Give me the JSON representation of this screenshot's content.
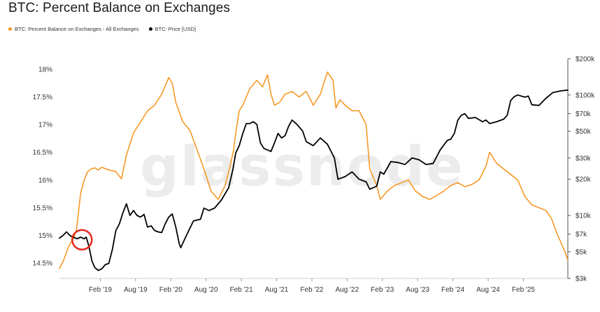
{
  "chart_data": {
    "type": "line",
    "title": "BTC: Percent Balance on Exchanges",
    "watermark": "glassnode",
    "x_labels": [
      "Feb '19",
      "Aug '19",
      "Feb '20",
      "Aug '20",
      "Feb '21",
      "Aug '21",
      "Feb '22",
      "Aug '22",
      "Feb '23",
      "Aug '23",
      "Feb '24",
      "Aug '24",
      "Feb '25"
    ],
    "x_label_values": [
      2019.08,
      2019.58,
      2020.08,
      2020.58,
      2021.08,
      2021.58,
      2022.08,
      2022.58,
      2023.08,
      2023.58,
      2024.08,
      2024.58,
      2025.08
    ],
    "xlim": [
      2018.5,
      2025.71
    ],
    "y_left": {
      "ticks": [
        "18%",
        "17.5%",
        "17%",
        "16.5%",
        "16%",
        "15.5%",
        "15%",
        "14.5%"
      ],
      "tick_values": [
        18,
        17.5,
        17,
        16.5,
        16,
        15.5,
        15,
        14.5
      ],
      "ylim": [
        14.3,
        18.1
      ]
    },
    "y_right": {
      "scale": "log",
      "ticks": [
        "$200k",
        "$100k",
        "$70k",
        "$50k",
        "$30k",
        "$20k",
        "$10k",
        "$7k",
        "$5k",
        "$3k"
      ],
      "tick_values": [
        200000,
        100000,
        70000,
        50000,
        30000,
        20000,
        10000,
        7000,
        5000,
        3000
      ],
      "ylim": [
        3000,
        200000
      ]
    },
    "series": [
      {
        "name": "BTC: Percent Balance on Exchanges - All Exchanges",
        "color": "#f7931a",
        "axis": "left",
        "x": [
          2018.5,
          2018.56,
          2018.63,
          2018.7,
          2018.74,
          2018.76,
          2018.8,
          2018.85,
          2018.9,
          2018.95,
          2019.0,
          2019.05,
          2019.1,
          2019.2,
          2019.3,
          2019.38,
          2019.45,
          2019.55,
          2019.65,
          2019.75,
          2019.85,
          2019.95,
          2020.05,
          2020.1,
          2020.15,
          2020.25,
          2020.35,
          2020.45,
          2020.55,
          2020.65,
          2020.75,
          2020.85,
          2020.92,
          2020.97,
          2021.0,
          2021.05,
          2021.1,
          2021.2,
          2021.3,
          2021.38,
          2021.45,
          2021.5,
          2021.55,
          2021.62,
          2021.7,
          2021.8,
          2021.9,
          2022.0,
          2022.1,
          2022.2,
          2022.3,
          2022.38,
          2022.42,
          2022.48,
          2022.55,
          2022.65,
          2022.75,
          2022.85,
          2022.9,
          2022.95,
          2023.0,
          2023.05,
          2023.15,
          2023.25,
          2023.35,
          2023.45,
          2023.55,
          2023.65,
          2023.75,
          2023.85,
          2023.95,
          2024.05,
          2024.15,
          2024.25,
          2024.35,
          2024.45,
          2024.55,
          2024.6,
          2024.65,
          2024.7,
          2024.8,
          2024.9,
          2025.0,
          2025.1,
          2025.2,
          2025.3,
          2025.4,
          2025.48,
          2025.55,
          2025.62,
          2025.67,
          2025.71
        ],
        "y": [
          14.4,
          14.55,
          14.8,
          14.95,
          15.1,
          15.3,
          15.75,
          16.0,
          16.15,
          16.2,
          16.22,
          16.18,
          16.23,
          16.18,
          16.15,
          16.02,
          16.45,
          16.85,
          17.05,
          17.25,
          17.35,
          17.55,
          17.85,
          17.75,
          17.4,
          17.05,
          16.9,
          16.55,
          16.2,
          15.8,
          15.65,
          15.9,
          16.25,
          16.55,
          16.85,
          17.25,
          17.35,
          17.65,
          17.8,
          17.68,
          17.9,
          17.55,
          17.35,
          17.4,
          17.55,
          17.6,
          17.5,
          17.6,
          17.35,
          17.55,
          17.95,
          17.8,
          17.3,
          17.45,
          17.35,
          17.25,
          17.25,
          17.0,
          16.2,
          16.05,
          15.9,
          15.65,
          15.8,
          15.9,
          15.95,
          16.0,
          15.8,
          15.7,
          15.65,
          15.72,
          15.8,
          15.9,
          15.95,
          15.88,
          15.92,
          16.0,
          16.25,
          16.5,
          16.4,
          16.3,
          16.2,
          16.1,
          16.0,
          15.7,
          15.55,
          15.5,
          15.45,
          15.3,
          15.05,
          14.85,
          14.7,
          14.55
        ]
      },
      {
        "name": "BTC: Price [USD]",
        "color": "#000000",
        "axis": "right",
        "x": [
          2018.5,
          2018.55,
          2018.6,
          2018.65,
          2018.7,
          2018.75,
          2018.8,
          2018.85,
          2018.88,
          2018.92,
          2018.96,
          2019.0,
          2019.05,
          2019.1,
          2019.15,
          2019.2,
          2019.25,
          2019.3,
          2019.35,
          2019.4,
          2019.45,
          2019.5,
          2019.55,
          2019.6,
          2019.65,
          2019.7,
          2019.75,
          2019.8,
          2019.85,
          2019.9,
          2019.95,
          2020.0,
          2020.05,
          2020.1,
          2020.15,
          2020.2,
          2020.22,
          2020.3,
          2020.4,
          2020.5,
          2020.55,
          2020.62,
          2020.7,
          2020.8,
          2020.9,
          2020.96,
          2021.0,
          2021.05,
          2021.1,
          2021.15,
          2021.2,
          2021.25,
          2021.3,
          2021.35,
          2021.4,
          2021.45,
          2021.5,
          2021.55,
          2021.6,
          2021.65,
          2021.7,
          2021.75,
          2021.8,
          2021.87,
          2021.95,
          2022.0,
          2022.1,
          2022.2,
          2022.3,
          2022.4,
          2022.45,
          2022.55,
          2022.65,
          2022.75,
          2022.85,
          2022.9,
          2022.95,
          2023.0,
          2023.05,
          2023.1,
          2023.2,
          2023.3,
          2023.4,
          2023.5,
          2023.6,
          2023.7,
          2023.8,
          2023.9,
          2024.0,
          2024.05,
          2024.1,
          2024.15,
          2024.2,
          2024.25,
          2024.3,
          2024.4,
          2024.5,
          2024.55,
          2024.6,
          2024.7,
          2024.8,
          2024.85,
          2024.9,
          2024.95,
          2025.0,
          2025.1,
          2025.15,
          2025.2,
          2025.3,
          2025.4,
          2025.5,
          2025.6,
          2025.71
        ],
        "y": [
          6500,
          6800,
          7300,
          6800,
          6600,
          6400,
          6600,
          6400,
          6600,
          5500,
          4200,
          3700,
          3500,
          3600,
          3900,
          4000,
          5200,
          7500,
          8500,
          10500,
          12500,
          10000,
          11000,
          10000,
          9700,
          10200,
          8000,
          8200,
          7500,
          7300,
          7200,
          8500,
          9700,
          10300,
          8000,
          5800,
          5400,
          6800,
          9000,
          9300,
          11500,
          11000,
          11500,
          13500,
          17000,
          24000,
          33000,
          38000,
          48000,
          58000,
          58000,
          60000,
          57000,
          40000,
          36000,
          35000,
          34000,
          40000,
          48000,
          44000,
          46000,
          55000,
          62000,
          57000,
          50000,
          41000,
          38000,
          44000,
          39000,
          30000,
          20000,
          21000,
          23000,
          20000,
          19000,
          16500,
          17000,
          17500,
          23000,
          22000,
          28000,
          27500,
          26500,
          30000,
          29000,
          26500,
          27000,
          35000,
          42000,
          43000,
          48000,
          62000,
          68000,
          70000,
          64000,
          65000,
          60000,
          62000,
          58000,
          60000,
          63000,
          68000,
          90000,
          97000,
          100000,
          96000,
          98000,
          83000,
          82000,
          94000,
          105000,
          108000,
          110000
        ]
      }
    ],
    "annotation": {
      "type": "circle",
      "color": "#e8271c",
      "x": 2018.82,
      "y_left": 14.92
    }
  }
}
